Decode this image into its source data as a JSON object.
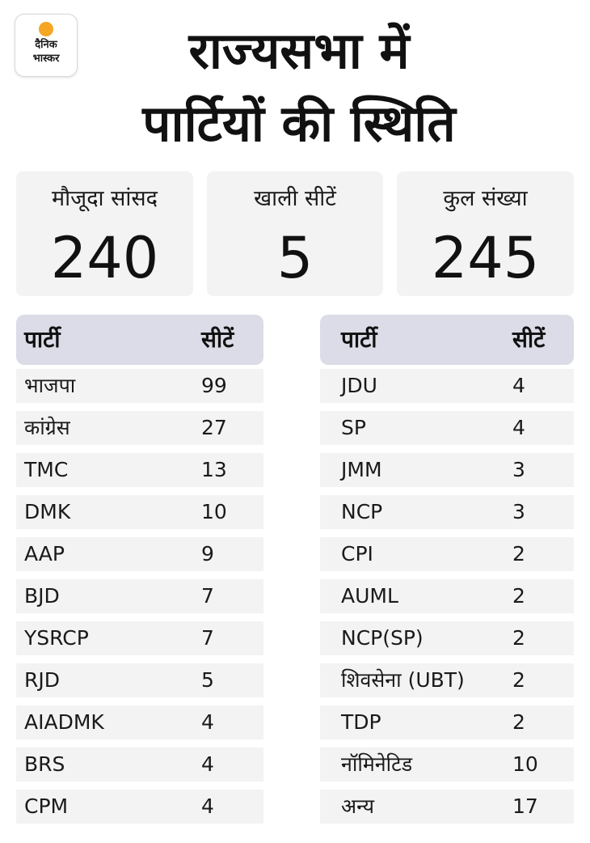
{
  "logo": {
    "line1": "दैनिक",
    "line2": "भास्कर",
    "accent": "#f5a623"
  },
  "title": {
    "line1": "राज्यसभा में",
    "line2": "पार्टियों की स्थिति"
  },
  "stats": [
    {
      "label": "मौजूदा सांसद",
      "value": "240"
    },
    {
      "label": "खाली सीटें",
      "value": "5"
    },
    {
      "label": "कुल संख्या",
      "value": "245"
    }
  ],
  "table_left": {
    "headers": {
      "party": "पार्टी",
      "seats": "सीटें"
    },
    "rows": [
      {
        "party": "भाजपा",
        "seats": "99"
      },
      {
        "party": "कांग्रेस",
        "seats": "27"
      },
      {
        "party": "TMC",
        "seats": "13"
      },
      {
        "party": "DMK",
        "seats": "10"
      },
      {
        "party": "AAP",
        "seats": "9"
      },
      {
        "party": "BJD",
        "seats": "7"
      },
      {
        "party": "YSRCP",
        "seats": "7"
      },
      {
        "party": "RJD",
        "seats": "5"
      },
      {
        "party": "AIADMK",
        "seats": "4"
      },
      {
        "party": "BRS",
        "seats": "4"
      },
      {
        "party": "CPM",
        "seats": "4"
      }
    ]
  },
  "table_right": {
    "headers": {
      "party": "पार्टी",
      "seats": "सीटें"
    },
    "rows": [
      {
        "party": "JDU",
        "seats": "4"
      },
      {
        "party": "SP",
        "seats": "4"
      },
      {
        "party": "JMM",
        "seats": "3"
      },
      {
        "party": "NCP",
        "seats": "3"
      },
      {
        "party": "CPI",
        "seats": "2"
      },
      {
        "party": "AUML",
        "seats": "2"
      },
      {
        "party": "NCP(SP)",
        "seats": "2"
      },
      {
        "party": "शिवसेना (UBT)",
        "seats": "2"
      },
      {
        "party": "TDP",
        "seats": "2"
      },
      {
        "party": "नॉमिनेटिड",
        "seats": "10"
      },
      {
        "party": "अन्य",
        "seats": "17"
      }
    ]
  }
}
